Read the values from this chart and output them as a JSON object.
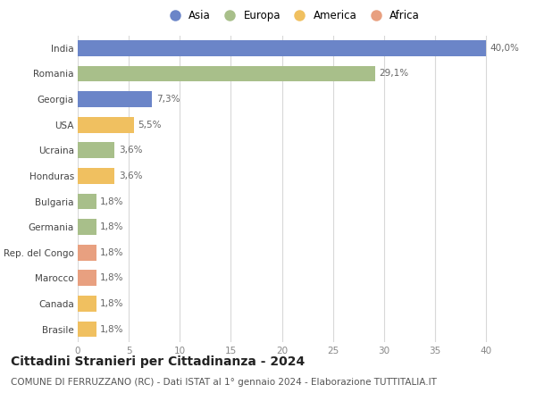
{
  "categories": [
    "India",
    "Romania",
    "Georgia",
    "USA",
    "Ucraina",
    "Honduras",
    "Bulgaria",
    "Germania",
    "Rep. del Congo",
    "Marocco",
    "Canada",
    "Brasile"
  ],
  "values": [
    40.0,
    29.1,
    7.3,
    5.5,
    3.6,
    3.6,
    1.8,
    1.8,
    1.8,
    1.8,
    1.8,
    1.8
  ],
  "labels": [
    "40,0%",
    "29,1%",
    "7,3%",
    "5,5%",
    "3,6%",
    "3,6%",
    "1,8%",
    "1,8%",
    "1,8%",
    "1,8%",
    "1,8%",
    "1,8%"
  ],
  "colors": [
    "#6b85c8",
    "#a8bf8a",
    "#6b85c8",
    "#f0c060",
    "#a8bf8a",
    "#f0c060",
    "#a8bf8a",
    "#a8bf8a",
    "#e8a080",
    "#e8a080",
    "#f0c060",
    "#f0c060"
  ],
  "legend_labels": [
    "Asia",
    "Europa",
    "America",
    "Africa"
  ],
  "legend_colors": [
    "#6b85c8",
    "#a8bf8a",
    "#f0c060",
    "#e8a080"
  ],
  "xlim": [
    0,
    42
  ],
  "xticks": [
    0,
    5,
    10,
    15,
    20,
    25,
    30,
    35,
    40
  ],
  "title": "Cittadini Stranieri per Cittadinanza - 2024",
  "subtitle": "COMUNE DI FERRUZZANO (RC) - Dati ISTAT al 1° gennaio 2024 - Elaborazione TUTTITALIA.IT",
  "background_color": "#ffffff",
  "grid_color": "#d8d8d8",
  "bar_height": 0.62,
  "label_fontsize": 7.5,
  "tick_fontsize": 7.5,
  "title_fontsize": 10,
  "subtitle_fontsize": 7.5
}
